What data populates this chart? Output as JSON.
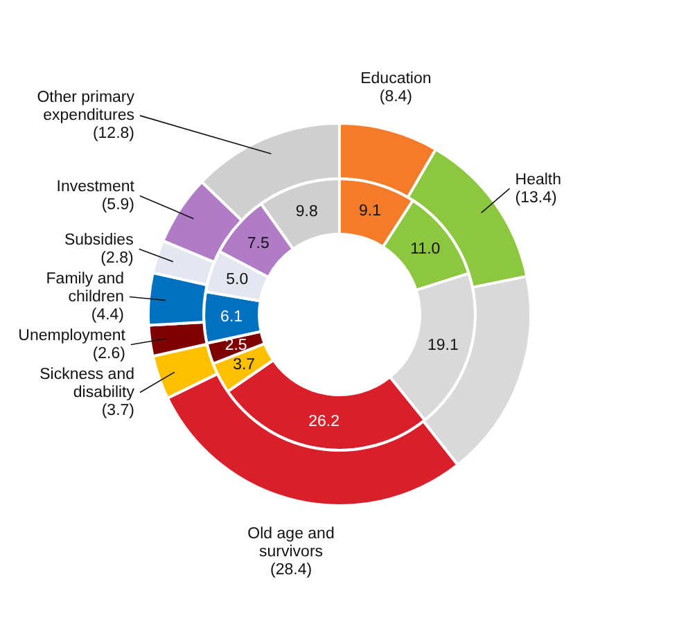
{
  "chart_data": {
    "type": "donut",
    "categories": [
      "Education",
      "Health",
      null,
      "Old age and survivors",
      "Sickness and disability",
      "Unemployment",
      "Family and children",
      "Subsidies",
      "Investment",
      "Other primary expenditures"
    ],
    "colors": [
      "#f47b2a",
      "#8dc63f",
      "#d9d9d9",
      "#d9202a",
      "#ffc000",
      "#7f0000",
      "#0070c0",
      "#e4e7ef",
      "#b07cc6",
      "#cfcfcf"
    ],
    "series": [
      {
        "values": [
          8.4,
          13.4,
          17.6,
          28.4,
          3.7,
          2.6,
          4.4,
          2.8,
          5.9,
          12.8
        ],
        "value_labels": [
          "(8.4)",
          "(13.4)",
          null,
          "(28.4)",
          "(3.7)",
          "(2.6)",
          "(4.4)",
          "(2.8)",
          "(5.9)",
          "(12.8)"
        ]
      },
      {
        "values": [
          9.1,
          11.0,
          19.1,
          26.2,
          3.7,
          2.5,
          6.1,
          5.0,
          7.5,
          9.8
        ],
        "value_labels": [
          "9.1",
          "11.0",
          "19.1",
          "26.2",
          "3.7",
          "2.5",
          "6.1",
          "5.0",
          "7.5",
          "9.8"
        ]
      }
    ]
  }
}
